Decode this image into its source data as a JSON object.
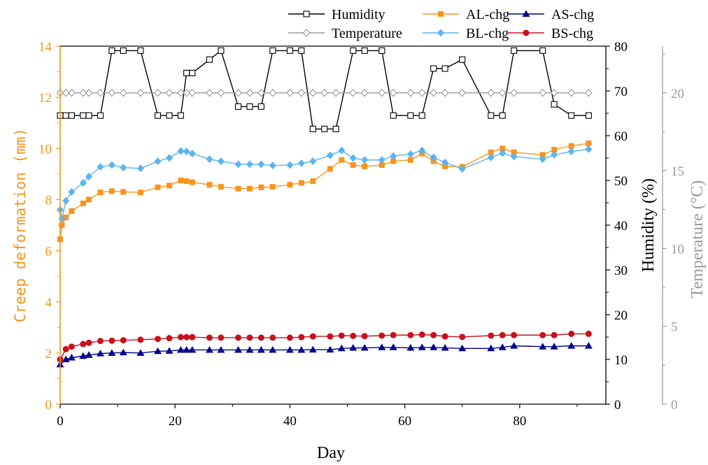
{
  "chart_data": {
    "type": "line",
    "xlabel": "Day",
    "ylabel_left": "Creep deformation (mm)",
    "ylabel_right1": "Humidity (%)",
    "ylabel_right2": "Temperature (°C)",
    "xlim": [
      0,
      95
    ],
    "xticks": [
      0,
      20,
      40,
      60,
      80
    ],
    "ylim_left": [
      0,
      14
    ],
    "yticks_left": [
      0,
      2,
      4,
      6,
      8,
      10,
      12,
      14
    ],
    "ylim_right1": [
      0,
      80
    ],
    "yticks_right1": [
      0,
      10,
      20,
      30,
      40,
      50,
      60,
      70,
      80
    ],
    "ylim_right2": [
      0,
      23
    ],
    "yticks_right2": [
      0,
      5,
      10,
      15,
      20
    ],
    "colors": {
      "left_axis": "#f7941d",
      "right1_axis": "#000000",
      "right2_axis": "#9a9a9a"
    },
    "legend_rows": [
      [
        "Humidity",
        "AL-chg",
        "AS-chg"
      ],
      [
        "Temperature",
        "BL-chg",
        "BS-chg"
      ]
    ],
    "series": [
      {
        "name": "Humidity",
        "axis": "right1",
        "color": "#000000",
        "marker": "open-square",
        "x": [
          0,
          1,
          2,
          4,
          5,
          7,
          9,
          11,
          14,
          17,
          19,
          21,
          22,
          23,
          26,
          28,
          31,
          33,
          35,
          37,
          40,
          42,
          44,
          46,
          48,
          51,
          53,
          56,
          58,
          61,
          63,
          65,
          67,
          70,
          75,
          77,
          79,
          84,
          86,
          89,
          92
        ],
        "y": [
          64.5,
          64.5,
          64.5,
          64.5,
          64.5,
          64.5,
          79,
          79,
          79,
          64.5,
          64.5,
          64.5,
          74,
          74,
          77,
          79,
          66.5,
          66.5,
          66.5,
          79,
          79,
          79,
          61.5,
          61.5,
          61.5,
          79,
          79,
          79,
          64.5,
          64.5,
          64.5,
          75,
          75,
          77,
          64.5,
          64.5,
          79,
          79,
          67,
          64.5,
          64.5
        ]
      },
      {
        "name": "Temperature",
        "axis": "right2",
        "color": "#9a9a9a",
        "marker": "open-diamond",
        "x": [
          0,
          1,
          2,
          4,
          5,
          7,
          9,
          11,
          14,
          17,
          19,
          21,
          22,
          23,
          26,
          28,
          31,
          33,
          35,
          37,
          40,
          42,
          44,
          46,
          48,
          51,
          53,
          56,
          58,
          61,
          63,
          65,
          67,
          70,
          75,
          77,
          79,
          84,
          86,
          89,
          92
        ],
        "y": [
          20,
          20,
          20,
          20,
          20,
          20,
          20,
          20,
          20,
          20,
          20,
          20,
          20,
          20,
          20,
          20,
          20,
          20,
          20,
          20,
          20,
          20,
          20,
          20,
          20,
          20,
          20,
          20,
          20,
          20,
          20,
          20,
          20,
          20,
          20,
          20,
          20,
          20,
          20,
          20,
          20
        ]
      },
      {
        "name": "AL-chg",
        "axis": "left",
        "color": "#f7941d",
        "marker": "square",
        "x": [
          0,
          0.3,
          1,
          2,
          4,
          5,
          7,
          9,
          11,
          14,
          17,
          19,
          21,
          22,
          23,
          26,
          28,
          31,
          33,
          35,
          37,
          40,
          42,
          44,
          47,
          49,
          51,
          53,
          56,
          58,
          61,
          63,
          65,
          67,
          70,
          75,
          77,
          79,
          84,
          86,
          89,
          92
        ],
        "y": [
          6.45,
          7.0,
          7.3,
          7.55,
          7.85,
          8.0,
          8.28,
          8.33,
          8.3,
          8.28,
          8.48,
          8.55,
          8.75,
          8.72,
          8.68,
          8.58,
          8.5,
          8.43,
          8.43,
          8.48,
          8.5,
          8.58,
          8.65,
          8.72,
          9.2,
          9.55,
          9.35,
          9.3,
          9.35,
          9.5,
          9.55,
          9.8,
          9.5,
          9.3,
          9.28,
          9.85,
          10.0,
          9.85,
          9.75,
          9.95,
          10.1,
          10.2
        ]
      },
      {
        "name": "BL-chg",
        "axis": "left",
        "color": "#5ab4f0",
        "marker": "diamond",
        "x": [
          0,
          0.3,
          1,
          2,
          4,
          5,
          7,
          9,
          11,
          14,
          17,
          19,
          21,
          22,
          23,
          26,
          28,
          31,
          33,
          35,
          37,
          40,
          42,
          44,
          47,
          49,
          51,
          53,
          56,
          58,
          61,
          63,
          65,
          67,
          70,
          75,
          77,
          79,
          84,
          86,
          89,
          92
        ],
        "y": [
          7.6,
          7.25,
          7.95,
          8.3,
          8.65,
          8.9,
          9.28,
          9.35,
          9.25,
          9.22,
          9.5,
          9.63,
          9.9,
          9.88,
          9.8,
          9.58,
          9.5,
          9.38,
          9.38,
          9.38,
          9.33,
          9.35,
          9.42,
          9.5,
          9.73,
          9.92,
          9.62,
          9.55,
          9.55,
          9.7,
          9.78,
          9.92,
          9.65,
          9.45,
          9.2,
          9.65,
          9.82,
          9.68,
          9.58,
          9.75,
          9.88,
          9.97
        ]
      },
      {
        "name": "AS-chg",
        "axis": "left",
        "color": "#00008b",
        "marker": "triangle",
        "x": [
          0,
          1,
          2,
          4,
          5,
          7,
          9,
          11,
          14,
          17,
          19,
          21,
          22,
          23,
          26,
          28,
          31,
          33,
          35,
          37,
          40,
          42,
          44,
          47,
          49,
          51,
          53,
          56,
          58,
          61,
          63,
          65,
          67,
          70,
          75,
          77,
          79,
          84,
          86,
          89,
          92
        ],
        "y": [
          1.55,
          1.75,
          1.82,
          1.88,
          1.92,
          1.98,
          2.0,
          2.02,
          2.0,
          2.07,
          2.08,
          2.12,
          2.12,
          2.12,
          2.12,
          2.12,
          2.12,
          2.12,
          2.12,
          2.12,
          2.12,
          2.12,
          2.13,
          2.13,
          2.18,
          2.2,
          2.2,
          2.22,
          2.22,
          2.2,
          2.22,
          2.22,
          2.2,
          2.18,
          2.18,
          2.22,
          2.28,
          2.25,
          2.25,
          2.28,
          2.28
        ]
      },
      {
        "name": "BS-chg",
        "axis": "left",
        "color": "#c8101e",
        "marker": "circle",
        "x": [
          0,
          1,
          2,
          4,
          5,
          7,
          9,
          11,
          14,
          17,
          19,
          21,
          22,
          23,
          26,
          28,
          31,
          33,
          35,
          37,
          40,
          42,
          44,
          47,
          49,
          51,
          53,
          56,
          58,
          61,
          63,
          65,
          67,
          70,
          75,
          77,
          79,
          84,
          86,
          89,
          92
        ],
        "y": [
          1.75,
          2.15,
          2.25,
          2.35,
          2.4,
          2.47,
          2.48,
          2.5,
          2.52,
          2.55,
          2.58,
          2.62,
          2.62,
          2.62,
          2.6,
          2.6,
          2.6,
          2.6,
          2.6,
          2.6,
          2.6,
          2.62,
          2.65,
          2.65,
          2.68,
          2.67,
          2.66,
          2.68,
          2.7,
          2.7,
          2.72,
          2.7,
          2.65,
          2.63,
          2.68,
          2.7,
          2.7,
          2.7,
          2.7,
          2.75,
          2.75
        ]
      }
    ]
  }
}
